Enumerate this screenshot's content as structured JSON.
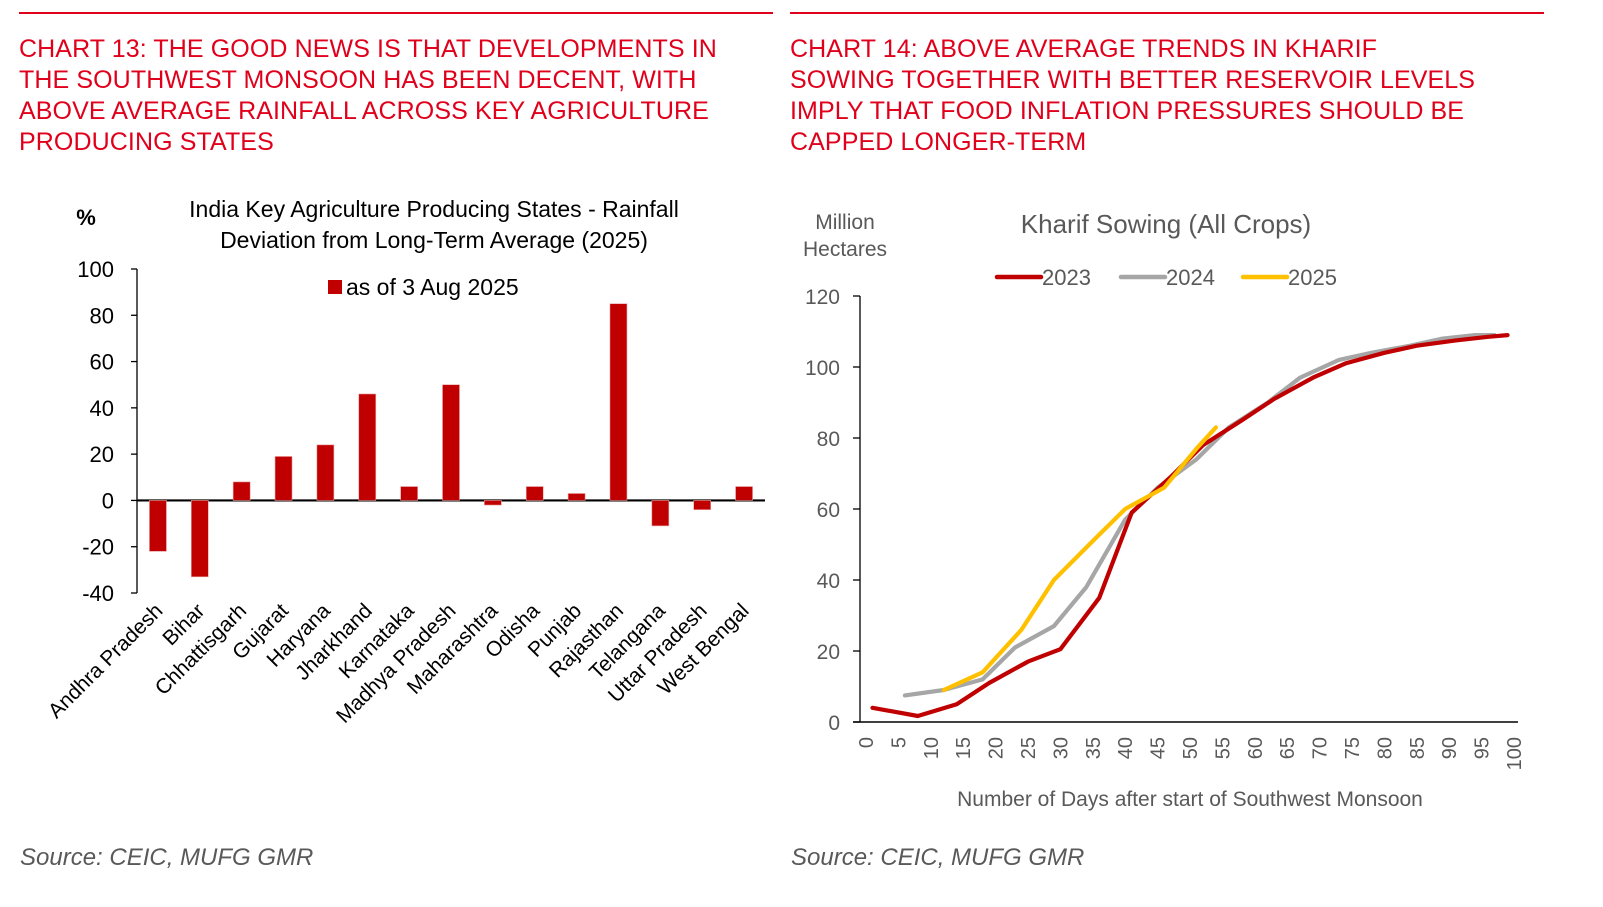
{
  "panels": [
    {
      "headline": "CHART 13: THE GOOD NEWS IS THAT DEVELOPMENTS IN\nTHE SOUTHWEST MONSOON HAS BEEN DECENT, WITH\nABOVE AVERAGE RAINFALL ACROSS KEY AGRICULTURE\nPRODUCING STATES",
      "source": "Source: CEIC, MUFG GMR"
    },
    {
      "headline": "CHART 14: ABOVE AVERAGE TRENDS IN KHARIF\nSOWING TOGETHER WITH BETTER RESERVOIR LEVELS\nIMPLY THAT FOOD INFLATION PRESSURES SHOULD BE\nCAPPED LONGER-TERM",
      "source": "Source: CEIC, MUFG GMR"
    }
  ],
  "colors": {
    "headline": "#e0001b",
    "bar": "#c00000",
    "line_2023": "#c00000",
    "line_2024": "#a6a6a6",
    "line_2025": "#ffc000",
    "axis_text": "#595959"
  },
  "chart_data": [
    {
      "type": "bar",
      "title": "India Key Agriculture Producing States - Rainfall Deviation from Long-Term Average (2025)",
      "title_lines": [
        "India Key Agriculture Producing States - Rainfall",
        "Deviation from Long-Term Average (2025)"
      ],
      "ylabel": "%",
      "xlabel": "",
      "ylim": [
        -40,
        100
      ],
      "yticks": [
        100,
        80,
        60,
        40,
        20,
        0,
        -20,
        -40
      ],
      "grid": false,
      "legend": {
        "position": "top-center",
        "entries": [
          "as of 3 Aug 2025"
        ]
      },
      "categories": [
        "Andhra Pradesh",
        "Bihar",
        "Chhattisgarh",
        "Gujarat",
        "Haryana",
        "Jharkhand",
        "Karnataka",
        "Madhya Pradesh",
        "Maharashtra",
        "Odisha",
        "Punjab",
        "Rajasthan",
        "Telangana",
        "Uttar Pradesh",
        "West Bengal"
      ],
      "series": [
        {
          "name": "as of 3 Aug 2025",
          "values": [
            -22,
            -33,
            8,
            19,
            24,
            46,
            6,
            50,
            -2,
            6,
            3,
            85,
            -11,
            -4,
            6
          ]
        }
      ]
    },
    {
      "type": "line",
      "title": "Kharif Sowing (All Crops)",
      "ylabel": "Million Hectares",
      "xlabel": "Number of Days after start of Southwest Monsoon",
      "ylim": [
        0,
        120
      ],
      "xlim": [
        0,
        100
      ],
      "yticks": [
        120,
        100,
        80,
        60,
        40,
        20,
        0
      ],
      "xticks": [
        0,
        5,
        10,
        15,
        20,
        25,
        30,
        35,
        40,
        45,
        50,
        55,
        60,
        65,
        70,
        75,
        80,
        85,
        90,
        95,
        100
      ],
      "grid": false,
      "legend": {
        "position": "top-center",
        "entries": [
          "2023",
          "2024",
          "2025"
        ]
      },
      "series": [
        {
          "name": "2023",
          "x": [
            1,
            8,
            14,
            19,
            25,
            30,
            36,
            41,
            47,
            52,
            58,
            63,
            69,
            74,
            80,
            85,
            91,
            96,
            99
          ],
          "values": [
            4,
            1.7,
            5,
            11,
            17,
            20.5,
            35,
            59,
            69,
            78,
            85,
            91,
            97,
            101,
            104,
            106,
            107.5,
            108.5,
            109
          ]
        },
        {
          "name": "2024",
          "x": [
            6,
            12,
            18,
            23,
            29,
            34,
            40,
            45,
            51,
            56,
            62,
            67,
            73,
            78,
            84,
            89,
            94,
            97
          ],
          "values": [
            7.5,
            9,
            12,
            21,
            27,
            38,
            57,
            66,
            74,
            83,
            90,
            97,
            102,
            104,
            106,
            108,
            109,
            109
          ]
        },
        {
          "name": "2025",
          "x": [
            12,
            18,
            24,
            29,
            35,
            40,
            46,
            51,
            54
          ],
          "values": [
            9,
            14,
            26,
            40,
            51,
            60,
            66,
            77,
            83
          ]
        }
      ]
    }
  ]
}
